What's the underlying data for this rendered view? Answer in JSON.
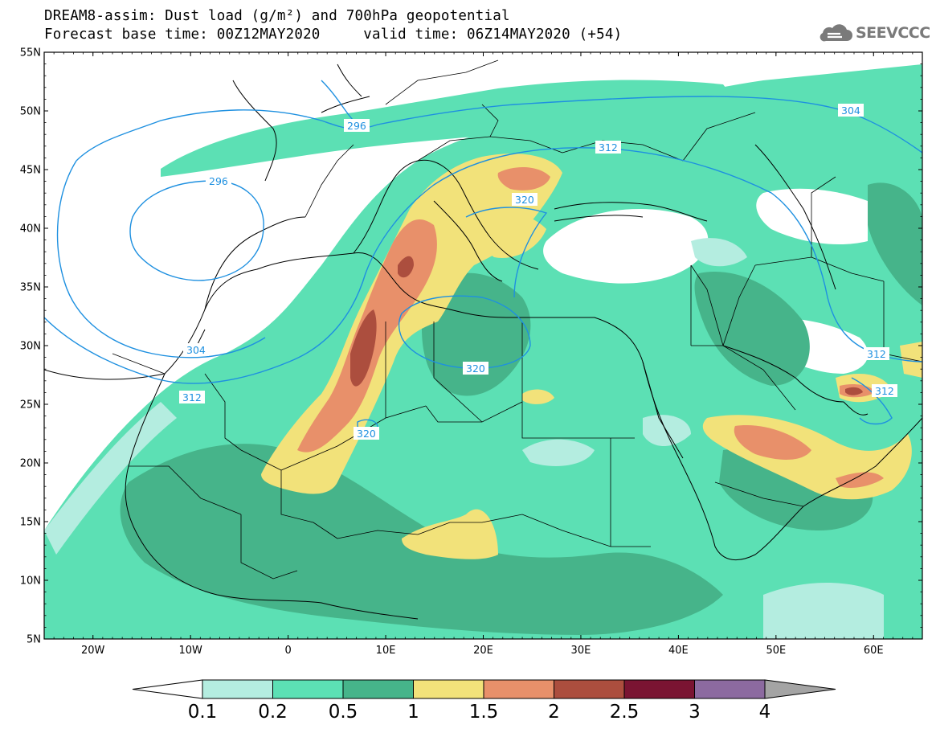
{
  "header": {
    "title_line1": "DREAM8-assim: Dust load (g/m²) and 700hPa geopotential",
    "title_line2": "Forecast base time: 00Z12MAY2020     valid time: 06Z14MAY2020 (+54)"
  },
  "logo": {
    "text": "SEEVCCC",
    "icon": "cloud-icon"
  },
  "map": {
    "projection": "cylindrical",
    "lon_range": [
      -25,
      65
    ],
    "lat_range": [
      5,
      55
    ],
    "lat_ticks": [
      {
        "value": 55,
        "label": "55N"
      },
      {
        "value": 50,
        "label": "50N"
      },
      {
        "value": 45,
        "label": "45N"
      },
      {
        "value": 40,
        "label": "40N"
      },
      {
        "value": 35,
        "label": "35N"
      },
      {
        "value": 30,
        "label": "30N"
      },
      {
        "value": 25,
        "label": "25N"
      },
      {
        "value": 20,
        "label": "20N"
      },
      {
        "value": 15,
        "label": "15N"
      },
      {
        "value": 10,
        "label": "10N"
      },
      {
        "value": 5,
        "label": "5N"
      }
    ],
    "lon_ticks": [
      {
        "value": -20,
        "label": "20W"
      },
      {
        "value": -10,
        "label": "10W"
      },
      {
        "value": 0,
        "label": "0"
      },
      {
        "value": 10,
        "label": "10E"
      },
      {
        "value": 20,
        "label": "20E"
      },
      {
        "value": 30,
        "label": "30E"
      },
      {
        "value": 40,
        "label": "40E"
      },
      {
        "value": 50,
        "label": "50E"
      },
      {
        "value": 60,
        "label": "60E"
      }
    ],
    "contour_labels": [
      "296",
      "296",
      "304",
      "304",
      "312",
      "312",
      "312",
      "312",
      "320",
      "320",
      "320"
    ],
    "colors": {
      "contour_line": "#1e90e0",
      "coastline": "#000000"
    }
  },
  "colorbar": {
    "labels": [
      "0.1",
      "0.2",
      "0.5",
      "1",
      "1.5",
      "2",
      "2.5",
      "3",
      "4"
    ],
    "colors": [
      "#b4ede0",
      "#5ce0b4",
      "#46b48a",
      "#f2e27a",
      "#e8906a",
      "#ac4e3e",
      "#7a1432",
      "#8c6aa0"
    ],
    "under_color": "#ffffff",
    "over_color": "#a4a4a4"
  }
}
